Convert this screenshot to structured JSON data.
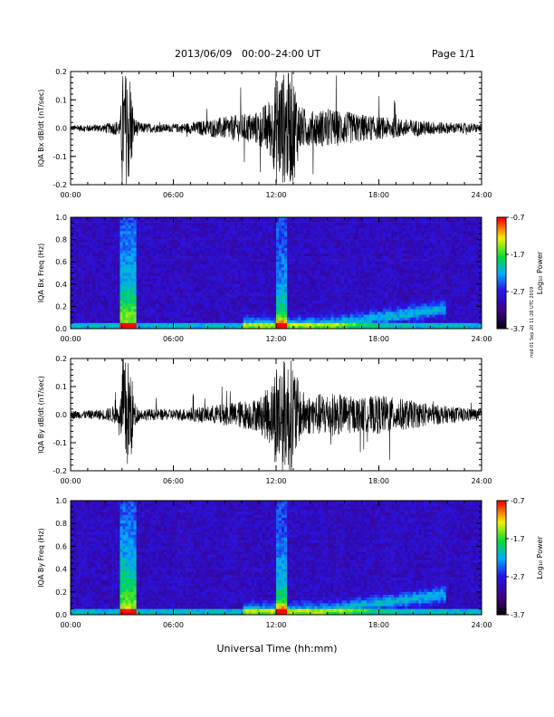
{
  "header": {
    "title": "2013/06/09   00:00–24:00 UT",
    "page": "Page 1/1"
  },
  "side_note": "mid 01 Sep 20 11:28 UTC 2019",
  "chart_data": [
    {
      "type": "line",
      "ylabel": "IQA Bx dB/dt (nT/sec)",
      "ylim": [
        -0.2,
        0.2
      ],
      "yticks": [
        "0.2",
        "0.1",
        "0.0",
        "-0.1",
        "-0.2"
      ],
      "xticks": [
        "00:00",
        "06:00",
        "12:00",
        "18:00",
        "24:00"
      ],
      "xlim": [
        0,
        24
      ],
      "envelope": {
        "hour": [
          0,
          1,
          2,
          2.9,
          3.0,
          3.5,
          3.7,
          4,
          5,
          6,
          7,
          8,
          9,
          10,
          11,
          11.8,
          12,
          12.4,
          13,
          13.4,
          14,
          15,
          16,
          17,
          18,
          19,
          20,
          21,
          22,
          23,
          24
        ],
        "amplitude": [
          0.01,
          0.012,
          0.015,
          0.03,
          0.2,
          0.2,
          0.04,
          0.02,
          0.015,
          0.015,
          0.02,
          0.03,
          0.04,
          0.05,
          0.06,
          0.12,
          0.2,
          0.2,
          0.2,
          0.08,
          0.06,
          0.07,
          0.06,
          0.05,
          0.04,
          0.035,
          0.03,
          0.025,
          0.02,
          0.018,
          0.015
        ]
      }
    },
    {
      "type": "heatmap",
      "ylabel": "IQA Bx Freq (Hz)",
      "ylim": [
        0,
        1.0
      ],
      "yticks": [
        "1.0",
        "0.8",
        "0.6",
        "0.4",
        "0.2",
        "0.0"
      ],
      "xticks": [
        "00:00",
        "06:00",
        "12:00",
        "18:00",
        "24:00"
      ],
      "colorbar": {
        "label": "Log₁₀ Power",
        "ticks": [
          "-0.7",
          "-1.7",
          "-2.7",
          "-3.7"
        ],
        "range": [
          -3.7,
          -0.7
        ]
      }
    },
    {
      "type": "line",
      "ylabel": "IQA By dB/dt (nT/sec)",
      "ylim": [
        -0.2,
        0.2
      ],
      "yticks": [
        "0.2",
        "0.1",
        "0.0",
        "-0.1",
        "-0.2"
      ],
      "xticks": [
        "00:00",
        "06:00",
        "12:00",
        "18:00",
        "24:00"
      ],
      "xlim": [
        0,
        24
      ],
      "envelope": {
        "hour": [
          0,
          1,
          2,
          2.9,
          3.0,
          3.5,
          3.7,
          4,
          5,
          6,
          7,
          8,
          9,
          10,
          11,
          11.8,
          12,
          12.4,
          13,
          13.4,
          14,
          15,
          16,
          17,
          18,
          19,
          20,
          21,
          22,
          23,
          24
        ],
        "amplitude": [
          0.015,
          0.015,
          0.02,
          0.04,
          0.2,
          0.2,
          0.05,
          0.02,
          0.02,
          0.02,
          0.025,
          0.03,
          0.04,
          0.05,
          0.06,
          0.12,
          0.2,
          0.2,
          0.2,
          0.09,
          0.07,
          0.08,
          0.07,
          0.06,
          0.07,
          0.06,
          0.05,
          0.04,
          0.03,
          0.025,
          0.02
        ]
      }
    },
    {
      "type": "heatmap",
      "ylabel": "IQA By Freq (Hz)",
      "ylim": [
        0,
        1.0
      ],
      "yticks": [
        "1.0",
        "0.8",
        "0.6",
        "0.4",
        "0.2",
        "0.0"
      ],
      "xticks": [
        "00:00",
        "06:00",
        "12:00",
        "18:00",
        "24:00"
      ],
      "colorbar": {
        "label": "Log₁₀ Power",
        "ticks": [
          "-0.7",
          "-1.7",
          "-2.7",
          "-3.7"
        ],
        "range": [
          -3.7,
          -0.7
        ]
      }
    }
  ],
  "xlabel": "Universal Time (hh:mm)"
}
